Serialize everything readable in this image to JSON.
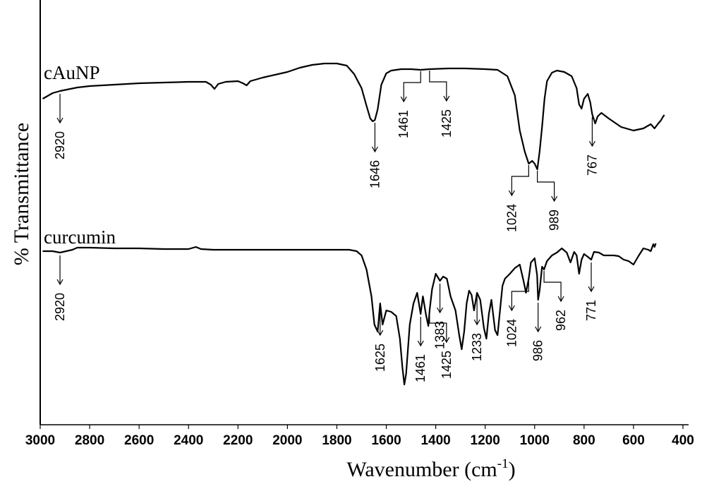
{
  "chart_data": {
    "type": "line",
    "xlabel_main": "Wavenumber (cm",
    "xlabel_sup": "-1",
    "xlabel_close": ")",
    "ylabel": "% Transmittance",
    "xlim": [
      3000,
      400
    ],
    "x_reversed": true,
    "x_ticks": [
      3000,
      2800,
      2600,
      2400,
      2200,
      2000,
      1800,
      1600,
      1400,
      1200,
      1000,
      800,
      600,
      400
    ],
    "series": [
      {
        "name": "cAuNP",
        "color": "#000000",
        "points": [
          [
            2990,
            140
          ],
          [
            2950,
            132
          ],
          [
            2920,
            129
          ],
          [
            2850,
            124
          ],
          [
            2800,
            122
          ],
          [
            2700,
            120
          ],
          [
            2600,
            118
          ],
          [
            2500,
            117
          ],
          [
            2400,
            116
          ],
          [
            2330,
            116
          ],
          [
            2310,
            120
          ],
          [
            2295,
            126
          ],
          [
            2280,
            119
          ],
          [
            2250,
            116
          ],
          [
            2200,
            115
          ],
          [
            2180,
            118
          ],
          [
            2165,
            121
          ],
          [
            2150,
            115
          ],
          [
            2100,
            110
          ],
          [
            2000,
            102
          ],
          [
            1950,
            96
          ],
          [
            1900,
            92
          ],
          [
            1850,
            90
          ],
          [
            1800,
            90
          ],
          [
            1760,
            93
          ],
          [
            1730,
            105
          ],
          [
            1700,
            125
          ],
          [
            1680,
            150
          ],
          [
            1665,
            168
          ],
          [
            1655,
            172
          ],
          [
            1646,
            170
          ],
          [
            1635,
            155
          ],
          [
            1620,
            120
          ],
          [
            1600,
            104
          ],
          [
            1580,
            100
          ],
          [
            1540,
            98
          ],
          [
            1500,
            98
          ],
          [
            1461,
            99
          ],
          [
            1425,
            98
          ],
          [
            1350,
            97
          ],
          [
            1280,
            97
          ],
          [
            1200,
            98
          ],
          [
            1150,
            99
          ],
          [
            1110,
            108
          ],
          [
            1080,
            135
          ],
          [
            1060,
            185
          ],
          [
            1040,
            215
          ],
          [
            1024,
            232
          ],
          [
            1010,
            228
          ],
          [
            1000,
            232
          ],
          [
            989,
            240
          ],
          [
            980,
            215
          ],
          [
            970,
            180
          ],
          [
            960,
            140
          ],
          [
            950,
            115
          ],
          [
            930,
            103
          ],
          [
            910,
            100
          ],
          [
            880,
            102
          ],
          [
            850,
            108
          ],
          [
            830,
            125
          ],
          [
            820,
            148
          ],
          [
            810,
            154
          ],
          [
            800,
            140
          ],
          [
            785,
            133
          ],
          [
            775,
            145
          ],
          [
            767,
            162
          ],
          [
            755,
            175
          ],
          [
            745,
            165
          ],
          [
            730,
            160
          ],
          [
            700,
            168
          ],
          [
            650,
            180
          ],
          [
            600,
            185
          ],
          [
            560,
            182
          ],
          [
            530,
            176
          ],
          [
            515,
            182
          ],
          [
            500,
            175
          ],
          [
            490,
            171
          ],
          [
            480,
            165
          ],
          [
            475,
            163
          ]
        ]
      },
      {
        "name": "curcumin",
        "color": "#000000",
        "points": [
          [
            2990,
            356
          ],
          [
            2950,
            356
          ],
          [
            2920,
            358
          ],
          [
            2870,
            354
          ],
          [
            2850,
            351
          ],
          [
            2800,
            351
          ],
          [
            2700,
            352
          ],
          [
            2600,
            352
          ],
          [
            2500,
            353
          ],
          [
            2400,
            353
          ],
          [
            2370,
            350
          ],
          [
            2350,
            353
          ],
          [
            2300,
            354
          ],
          [
            2200,
            354
          ],
          [
            2100,
            354
          ],
          [
            2000,
            354
          ],
          [
            1900,
            354
          ],
          [
            1800,
            354
          ],
          [
            1750,
            354
          ],
          [
            1720,
            356
          ],
          [
            1700,
            362
          ],
          [
            1680,
            382
          ],
          [
            1660,
            420
          ],
          [
            1648,
            460
          ],
          [
            1635,
            470
          ],
          [
            1625,
            430
          ],
          [
            1615,
            460
          ],
          [
            1600,
            440
          ],
          [
            1580,
            442
          ],
          [
            1560,
            448
          ],
          [
            1545,
            480
          ],
          [
            1535,
            520
          ],
          [
            1527,
            545
          ],
          [
            1520,
            530
          ],
          [
            1505,
            460
          ],
          [
            1490,
            430
          ],
          [
            1475,
            415
          ],
          [
            1461,
            445
          ],
          [
            1452,
            420
          ],
          [
            1440,
            445
          ],
          [
            1430,
            462
          ],
          [
            1425,
            440
          ],
          [
            1415,
            410
          ],
          [
            1400,
            388
          ],
          [
            1383,
            398
          ],
          [
            1370,
            392
          ],
          [
            1355,
            395
          ],
          [
            1340,
            420
          ],
          [
            1320,
            440
          ],
          [
            1305,
            475
          ],
          [
            1295,
            495
          ],
          [
            1285,
            470
          ],
          [
            1275,
            430
          ],
          [
            1265,
            412
          ],
          [
            1255,
            418
          ],
          [
            1245,
            440
          ],
          [
            1233,
            415
          ],
          [
            1220,
            425
          ],
          [
            1205,
            465
          ],
          [
            1195,
            480
          ],
          [
            1185,
            445
          ],
          [
            1175,
            425
          ],
          [
            1160,
            468
          ],
          [
            1150,
            475
          ],
          [
            1140,
            440
          ],
          [
            1130,
            405
          ],
          [
            1120,
            395
          ],
          [
            1100,
            388
          ],
          [
            1080,
            380
          ],
          [
            1060,
            375
          ],
          [
            1045,
            398
          ],
          [
            1035,
            415
          ],
          [
            1024,
            395
          ],
          [
            1015,
            372
          ],
          [
            1000,
            366
          ],
          [
            990,
            390
          ],
          [
            986,
            425
          ],
          [
            980,
            412
          ],
          [
            970,
            378
          ],
          [
            962,
            382
          ],
          [
            950,
            370
          ],
          [
            930,
            362
          ],
          [
            910,
            358
          ],
          [
            890,
            352
          ],
          [
            870,
            358
          ],
          [
            855,
            372
          ],
          [
            840,
            357
          ],
          [
            830,
            362
          ],
          [
            820,
            388
          ],
          [
            810,
            368
          ],
          [
            800,
            360
          ],
          [
            785,
            364
          ],
          [
            771,
            368
          ],
          [
            760,
            357
          ],
          [
            740,
            358
          ],
          [
            720,
            362
          ],
          [
            700,
            362
          ],
          [
            680,
            362
          ],
          [
            660,
            363
          ],
          [
            640,
            368
          ],
          [
            620,
            370
          ],
          [
            600,
            375
          ],
          [
            580,
            363
          ],
          [
            560,
            352
          ],
          [
            540,
            354
          ],
          [
            530,
            356
          ],
          [
            520,
            346
          ],
          [
            515,
            350
          ],
          [
            510,
            345
          ]
        ]
      }
    ],
    "annotations": [
      {
        "label": "2920",
        "series": "cAuNP",
        "type": "arrow",
        "x": 2920
      },
      {
        "label": "1646",
        "series": "cAuNP",
        "type": "arrow",
        "x": 1646
      },
      {
        "label": "1461",
        "series": "cAuNP",
        "type": "bracket-left",
        "x": 1461
      },
      {
        "label": "1425",
        "series": "cAuNP",
        "type": "bracket-right",
        "x": 1425
      },
      {
        "label": "1024",
        "series": "cAuNP",
        "type": "bracket-left",
        "x": 1024
      },
      {
        "label": "989",
        "series": "cAuNP",
        "type": "bracket-right",
        "x": 989
      },
      {
        "label": "767",
        "series": "cAuNP",
        "type": "arrow",
        "x": 767
      },
      {
        "label": "2920",
        "series": "curcumin",
        "type": "arrow",
        "x": 2920
      },
      {
        "label": "1625",
        "series": "curcumin",
        "type": "arrow",
        "x": 1625
      },
      {
        "label": "1461",
        "series": "curcumin",
        "type": "arrow",
        "x": 1461
      },
      {
        "label": "1425",
        "series": "curcumin",
        "type": "bracket-right",
        "x": 1425
      },
      {
        "label": "1383",
        "series": "curcumin",
        "type": "arrow",
        "x": 1383
      },
      {
        "label": "1233",
        "series": "curcumin",
        "type": "arrow",
        "x": 1233
      },
      {
        "label": "1024",
        "series": "curcumin",
        "type": "bracket-left",
        "x": 1024
      },
      {
        "label": "986",
        "series": "curcumin",
        "type": "arrow",
        "x": 986
      },
      {
        "label": "962",
        "series": "curcumin",
        "type": "bracket-right",
        "x": 962
      },
      {
        "label": "771",
        "series": "curcumin",
        "type": "arrow",
        "x": 771
      }
    ]
  }
}
